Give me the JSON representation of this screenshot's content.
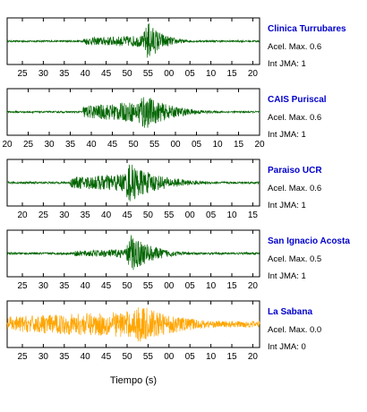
{
  "chart_data": [
    {
      "type": "line",
      "station": "Clinica Turrubares",
      "accel_label": "Acel. Max. 0.6",
      "jma_label": "Int JMA: 1",
      "trace_color": "#006400",
      "xticks": [
        "25",
        "30",
        "35",
        "40",
        "45",
        "50",
        "55",
        "00",
        "05",
        "10",
        "15",
        "20"
      ],
      "series": [
        {
          "x": [
            20,
            80
          ],
          "envelope": {
            "onset": 38,
            "peak_time": 53.5,
            "noise": 0.04,
            "pre": 0.16,
            "peak": 0.95,
            "decay": 3.5
          }
        }
      ]
    },
    {
      "type": "line",
      "station": "CAIS Puriscal",
      "accel_label": "Acel. Max. 0.6",
      "jma_label": "Int JMA: 1",
      "trace_color": "#006400",
      "xticks": [
        "20",
        "25",
        "30",
        "35",
        "40",
        "45",
        "50",
        "55",
        "00",
        "05",
        "10",
        "15",
        "20"
      ],
      "series": [
        {
          "x": [
            20,
            80
          ],
          "envelope": {
            "onset": 38,
            "peak_time": 52,
            "noise": 0.04,
            "pre": 0.28,
            "peak": 0.95,
            "decay": 6
          }
        }
      ]
    },
    {
      "type": "line",
      "station": "Paraiso UCR",
      "accel_label": "Acel. Max. 0.6",
      "jma_label": "Int JMA: 1",
      "trace_color": "#006400",
      "xticks": [
        "20",
        "25",
        "30",
        "35",
        "40",
        "45",
        "50",
        "55",
        "00",
        "05",
        "10",
        "15"
      ],
      "series": [
        {
          "x": [
            20,
            80
          ],
          "envelope": {
            "onset": 35,
            "peak_time": 49,
            "noise": 0.05,
            "pre": 0.25,
            "peak": 0.95,
            "decay": 7
          }
        }
      ]
    },
    {
      "type": "line",
      "station": "San Ignacio Acosta",
      "accel_label": "Acel. Max. 0.5",
      "jma_label": "Int JMA: 1",
      "trace_color": "#006400",
      "xticks": [
        "25",
        "30",
        "35",
        "40",
        "45",
        "50",
        "55",
        "00",
        "05",
        "10",
        "15",
        "20"
      ],
      "series": [
        {
          "x": [
            20,
            80
          ],
          "envelope": {
            "onset": 36,
            "peak_time": 49.5,
            "noise": 0.05,
            "pre": 0.12,
            "peak": 0.95,
            "decay": 5
          }
        }
      ]
    },
    {
      "type": "line",
      "station": "La Sabana",
      "accel_label": "Acel. Max. 0.0",
      "jma_label": "Int JMA: 0",
      "trace_color": "#FFA500",
      "xticks": [
        "25",
        "30",
        "35",
        "40",
        "45",
        "50",
        "55",
        "00",
        "05",
        "10",
        "15",
        "20"
      ],
      "series": [
        {
          "x": [
            20,
            80
          ],
          "envelope": {
            "onset": 20,
            "peak_time": 51,
            "noise": 0.15,
            "pre": 0.35,
            "peak": 0.95,
            "decay": 10
          }
        }
      ]
    }
  ],
  "xlabel": "Tiempo (s)",
  "station_color": "#0000CC"
}
